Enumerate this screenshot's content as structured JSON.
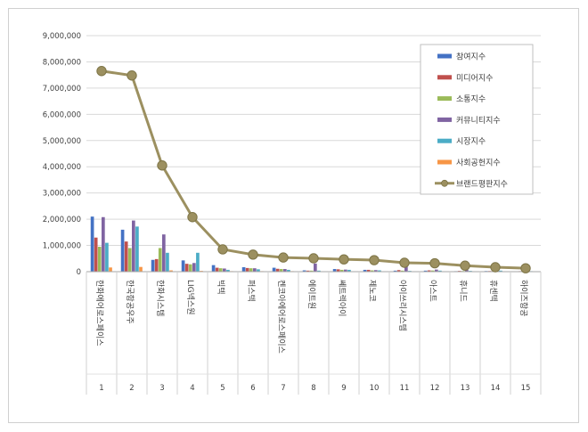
{
  "chart_data": {
    "type": "bar",
    "categories": [
      "한화에어로스페이스",
      "한국항공우주",
      "한화시스템",
      "LIG넥스원",
      "빅텍",
      "퍼스텍",
      "켄코아에어로스페이스",
      "에이트원",
      "쎄트렉아이",
      "제노코",
      "아이쓰리시스템",
      "아스트",
      "휴니드",
      "휴센텍",
      "하이즈항공"
    ],
    "category_numbers": [
      "1",
      "2",
      "3",
      "4",
      "5",
      "6",
      "7",
      "8",
      "9",
      "10",
      "11",
      "12",
      "13",
      "14",
      "15"
    ],
    "y_ticks": [
      "0",
      "1,000,000",
      "2,000,000",
      "3,000,000",
      "4,000,000",
      "5,000,000",
      "6,000,000",
      "7,000,000",
      "8,000,000",
      "9,000,000"
    ],
    "ylim": [
      0,
      9000000
    ],
    "legend_position": "top-right",
    "series": [
      {
        "name": "참여지수",
        "type": "bar",
        "color": "#4472c4",
        "values": [
          2100000,
          1600000,
          450000,
          430000,
          250000,
          170000,
          150000,
          50000,
          100000,
          70000,
          40000,
          40000,
          20000,
          25000,
          15000
        ]
      },
      {
        "name": "미디어지수",
        "type": "bar",
        "color": "#c0504d",
        "values": [
          1300000,
          1150000,
          480000,
          300000,
          150000,
          140000,
          110000,
          40000,
          90000,
          70000,
          60000,
          50000,
          30000,
          25000,
          20000
        ]
      },
      {
        "name": "소통지수",
        "type": "bar",
        "color": "#9bbb59",
        "values": [
          950000,
          900000,
          900000,
          280000,
          130000,
          130000,
          100000,
          40000,
          70000,
          50000,
          40000,
          45000,
          25000,
          20000,
          15000
        ]
      },
      {
        "name": "커뮤니티지수",
        "type": "bar",
        "color": "#8064a2",
        "values": [
          2080000,
          1950000,
          1420000,
          330000,
          120000,
          130000,
          100000,
          310000,
          80000,
          60000,
          280000,
          80000,
          70000,
          40000,
          20000
        ]
      },
      {
        "name": "시장지수",
        "type": "bar",
        "color": "#4bacc6",
        "values": [
          1100000,
          1720000,
          720000,
          720000,
          70000,
          90000,
          70000,
          40000,
          70000,
          50000,
          30000,
          40000,
          30000,
          40000,
          20000
        ]
      },
      {
        "name": "사회공헌지수",
        "type": "bar",
        "color": "#f79646",
        "values": [
          160000,
          180000,
          50000,
          30000,
          20000,
          20000,
          20000,
          10000,
          15000,
          10000,
          10000,
          10000,
          8000,
          8000,
          8000
        ]
      },
      {
        "name": "브랜드평판지수",
        "type": "line",
        "color": "#9c9060",
        "values": [
          7650000,
          7480000,
          4050000,
          2080000,
          850000,
          650000,
          540000,
          510000,
          470000,
          440000,
          340000,
          320000,
          230000,
          170000,
          130000
        ]
      }
    ]
  }
}
